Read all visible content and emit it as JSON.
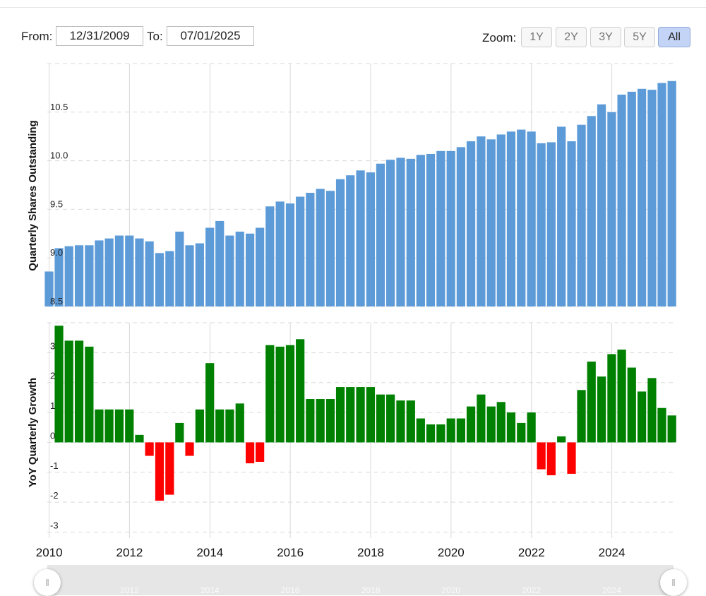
{
  "range": {
    "from_label": "From:",
    "from_value": "12/31/2009",
    "to_label": "To:",
    "to_value": "07/01/2025"
  },
  "zoom": {
    "label": "Zoom:",
    "buttons": [
      "1Y",
      "2Y",
      "3Y",
      "5Y",
      "All"
    ],
    "active": "All"
  },
  "navigator": {
    "handle_icon": "grip-lines-icon",
    "year_labels": [
      "2010",
      "2012",
      "2014",
      "2016",
      "2018",
      "2020",
      "2022",
      "2024"
    ]
  },
  "colors": {
    "shares_bar": "#5c9bd8",
    "growth_positive": "#008000",
    "growth_negative": "#ff0000",
    "grid": "#d9d9d9"
  },
  "chart_data": [
    {
      "type": "bar",
      "ylabel": "Quarterly Shares Outstanding",
      "ylim": [
        8.5,
        11.0
      ],
      "yticks": [
        "8.5",
        "9.0",
        "9.5",
        "10.0",
        "10.5"
      ],
      "x_tick_labels": [
        "2010",
        "2012",
        "2014",
        "2016",
        "2018",
        "2020",
        "2022",
        "2024"
      ],
      "grid": true,
      "x": [
        "2009-12-31",
        "2010-03-31",
        "2010-06-30",
        "2010-09-30",
        "2010-12-31",
        "2011-03-31",
        "2011-06-30",
        "2011-09-30",
        "2011-12-31",
        "2012-03-31",
        "2012-06-30",
        "2012-09-30",
        "2012-12-31",
        "2013-03-31",
        "2013-06-30",
        "2013-09-30",
        "2013-12-31",
        "2014-03-31",
        "2014-06-30",
        "2014-09-30",
        "2014-12-31",
        "2015-03-31",
        "2015-06-30",
        "2015-09-30",
        "2015-12-31",
        "2016-03-31",
        "2016-06-30",
        "2016-09-30",
        "2016-12-31",
        "2017-03-31",
        "2017-06-30",
        "2017-09-30",
        "2017-12-31",
        "2018-03-31",
        "2018-06-30",
        "2018-09-30",
        "2018-12-31",
        "2019-03-31",
        "2019-06-30",
        "2019-09-30",
        "2019-12-31",
        "2020-03-31",
        "2020-06-30",
        "2020-09-30",
        "2020-12-31",
        "2021-03-31",
        "2021-06-30",
        "2021-09-30",
        "2021-12-31",
        "2022-03-31",
        "2022-06-30",
        "2022-09-30",
        "2022-12-31",
        "2023-03-31",
        "2023-06-30",
        "2023-09-30",
        "2023-12-31",
        "2024-03-31",
        "2024-06-30",
        "2024-09-30",
        "2024-12-31",
        "2025-03-31",
        "2025-06-30"
      ],
      "values": [
        8.86,
        9.1,
        9.12,
        9.13,
        9.13,
        9.18,
        9.2,
        9.23,
        9.23,
        9.2,
        9.17,
        9.05,
        9.07,
        9.27,
        9.13,
        9.15,
        9.31,
        9.38,
        9.23,
        9.27,
        9.25,
        9.31,
        9.53,
        9.58,
        9.56,
        9.63,
        9.67,
        9.71,
        9.69,
        9.81,
        9.85,
        9.9,
        9.88,
        9.97,
        10.01,
        10.03,
        10.02,
        10.06,
        10.07,
        10.1,
        10.1,
        10.14,
        10.2,
        10.25,
        10.22,
        10.27,
        10.3,
        10.32,
        10.3,
        10.18,
        10.19,
        10.35,
        10.2,
        10.37,
        10.46,
        10.58,
        10.5,
        10.68,
        10.71,
        10.74,
        10.73,
        10.8,
        10.82
      ]
    },
    {
      "type": "bar",
      "ylabel": "YoY Quarterly Growth",
      "ylim": [
        -3.2,
        4.0
      ],
      "yticks": [
        "-3",
        "-2",
        "-1",
        "0",
        "1",
        "2",
        "3"
      ],
      "grid": true,
      "x": [
        "2009-12-31",
        "2010-03-31",
        "2010-06-30",
        "2010-09-30",
        "2010-12-31",
        "2011-03-31",
        "2011-06-30",
        "2011-09-30",
        "2011-12-31",
        "2012-03-31",
        "2012-06-30",
        "2012-09-30",
        "2012-12-31",
        "2013-03-31",
        "2013-06-30",
        "2013-09-30",
        "2013-12-31",
        "2014-03-31",
        "2014-06-30",
        "2014-09-30",
        "2014-12-31",
        "2015-03-31",
        "2015-06-30",
        "2015-09-30",
        "2015-12-31",
        "2016-03-31",
        "2016-06-30",
        "2016-09-30",
        "2016-12-31",
        "2017-03-31",
        "2017-06-30",
        "2017-09-30",
        "2017-12-31",
        "2018-03-31",
        "2018-06-30",
        "2018-09-30",
        "2018-12-31",
        "2019-03-31",
        "2019-06-30",
        "2019-09-30",
        "2019-12-31",
        "2020-03-31",
        "2020-06-30",
        "2020-09-30",
        "2020-12-31",
        "2021-03-31",
        "2021-06-30",
        "2021-09-30",
        "2021-12-31",
        "2022-03-31",
        "2022-06-30",
        "2022-09-30",
        "2022-12-31",
        "2023-03-31",
        "2023-06-30",
        "2023-09-30",
        "2023-12-31",
        "2024-03-31",
        "2024-06-30",
        "2024-09-30",
        "2024-12-31",
        "2025-03-31",
        "2025-06-30"
      ],
      "values": [
        null,
        3.9,
        3.4,
        3.4,
        3.2,
        1.1,
        1.1,
        1.1,
        1.1,
        0.25,
        -0.45,
        -1.95,
        -1.75,
        0.65,
        -0.45,
        1.1,
        2.65,
        1.1,
        1.1,
        1.3,
        -0.7,
        -0.65,
        3.25,
        3.2,
        3.25,
        3.45,
        1.45,
        1.45,
        1.45,
        1.85,
        1.85,
        1.85,
        1.85,
        1.6,
        1.6,
        1.4,
        1.4,
        0.8,
        0.6,
        0.6,
        0.8,
        0.8,
        1.2,
        1.6,
        1.2,
        1.35,
        1.0,
        0.65,
        1.0,
        -0.9,
        -1.1,
        0.2,
        -1.05,
        1.75,
        2.7,
        2.2,
        2.95,
        3.1,
        2.5,
        1.7,
        2.15,
        1.15,
        0.9
      ]
    }
  ]
}
